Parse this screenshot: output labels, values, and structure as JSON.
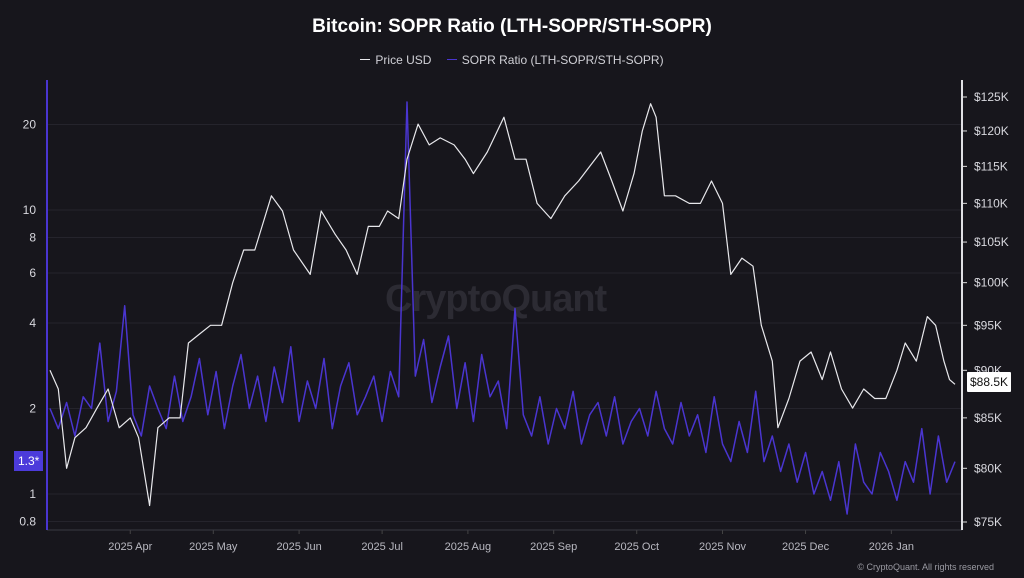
{
  "chart_data": {
    "type": "line",
    "title": "Bitcoin: SOPR Ratio (LTH-SOPR/STH-SOPR)",
    "legend": [
      {
        "name": "Price USD",
        "color": "#e8e8ec"
      },
      {
        "name": "SOPR Ratio (LTH-SOPR/STH-SOPR)",
        "color": "#4a35d0"
      }
    ],
    "legend_position": "top-center",
    "x_range": [
      "2025-03-03",
      "2026-01-24"
    ],
    "x_ticks": [
      "2025 Apr",
      "2025 May",
      "2025 Jun",
      "2025 Jul",
      "2025 Aug",
      "2025 Sep",
      "2025 Oct",
      "2025 Nov",
      "2025 Dec",
      "2026 Jan"
    ],
    "x_tick_dates": [
      "2025-04-01",
      "2025-05-01",
      "2025-06-01",
      "2025-07-01",
      "2025-08-01",
      "2025-09-01",
      "2025-10-01",
      "2025-11-01",
      "2025-12-01",
      "2026-01-01"
    ],
    "left_axis": {
      "scale": "log",
      "range": [
        0.75,
        28
      ],
      "ticks": [
        20,
        10,
        8,
        6,
        4,
        2,
        1,
        0.8
      ],
      "tick_labels": [
        "20",
        "10",
        "8",
        "6",
        "4",
        "2",
        "1",
        "0.8"
      ]
    },
    "right_axis": {
      "scale": "log",
      "range": [
        75,
        128
      ],
      "ticks": [
        125,
        120,
        115,
        110,
        105,
        100,
        95,
        90,
        85,
        80,
        75
      ],
      "tick_labels": [
        "$125K",
        "$120K",
        "$115K",
        "$110K",
        "$105K",
        "$100K",
        "$95K",
        "$90K",
        "$85K",
        "$80K",
        "$75K"
      ]
    },
    "price_series": {
      "name": "Price USD",
      "unit": "thousand USD",
      "dates": [
        "2025-03-03",
        "2025-03-06",
        "2025-03-09",
        "2025-03-12",
        "2025-03-16",
        "2025-03-20",
        "2025-03-24",
        "2025-03-28",
        "2025-04-01",
        "2025-04-04",
        "2025-04-08",
        "2025-04-11",
        "2025-04-15",
        "2025-04-19",
        "2025-04-22",
        "2025-04-26",
        "2025-04-30",
        "2025-05-04",
        "2025-05-08",
        "2025-05-12",
        "2025-05-16",
        "2025-05-22",
        "2025-05-26",
        "2025-05-30",
        "2025-06-05",
        "2025-06-09",
        "2025-06-14",
        "2025-06-18",
        "2025-06-22",
        "2025-06-26",
        "2025-06-30",
        "2025-07-03",
        "2025-07-07",
        "2025-07-10",
        "2025-07-14",
        "2025-07-18",
        "2025-07-22",
        "2025-07-27",
        "2025-07-31",
        "2025-08-03",
        "2025-08-08",
        "2025-08-14",
        "2025-08-18",
        "2025-08-22",
        "2025-08-26",
        "2025-08-31",
        "2025-09-05",
        "2025-09-10",
        "2025-09-14",
        "2025-09-18",
        "2025-09-22",
        "2025-09-26",
        "2025-09-30",
        "2025-10-03",
        "2025-10-06",
        "2025-10-08",
        "2025-10-11",
        "2025-10-15",
        "2025-10-20",
        "2025-10-24",
        "2025-10-28",
        "2025-11-01",
        "2025-11-04",
        "2025-11-08",
        "2025-11-12",
        "2025-11-15",
        "2025-11-19",
        "2025-11-21",
        "2025-11-25",
        "2025-11-29",
        "2025-12-03",
        "2025-12-07",
        "2025-12-10",
        "2025-12-14",
        "2025-12-18",
        "2025-12-22",
        "2025-12-26",
        "2025-12-30",
        "2026-01-03",
        "2026-01-06",
        "2026-01-10",
        "2026-01-14",
        "2026-01-17",
        "2026-01-20",
        "2026-01-22",
        "2026-01-24"
      ],
      "values": [
        90,
        88,
        80,
        83,
        84,
        86,
        88,
        84,
        85,
        83,
        76.5,
        84,
        85,
        85,
        93,
        94,
        95,
        95,
        100,
        104,
        104,
        111,
        109,
        104,
        101,
        109,
        106,
        104,
        101,
        107,
        107,
        109,
        108,
        116,
        121,
        118,
        119,
        118,
        116,
        114,
        117,
        122,
        116,
        116,
        110,
        108,
        111,
        113,
        115,
        117,
        113,
        109,
        114,
        120,
        124,
        122,
        111,
        111,
        110,
        110,
        113,
        110,
        101,
        103,
        102,
        95,
        91,
        84,
        87,
        91,
        92,
        89,
        92,
        88,
        86,
        88,
        87,
        87,
        90,
        93,
        91,
        96,
        95,
        91,
        89,
        88.5
      ]
    },
    "ratio_series": {
      "name": "SOPR Ratio (LTH-SOPR/STH-SOPR)",
      "start_date": "2025-03-03",
      "step_days": 3,
      "values": [
        2.0,
        1.7,
        2.1,
        1.6,
        2.2,
        2.0,
        3.4,
        1.8,
        2.3,
        4.6,
        1.9,
        1.6,
        2.4,
        2.0,
        1.7,
        2.6,
        1.8,
        2.2,
        3.0,
        1.9,
        2.7,
        1.7,
        2.4,
        3.1,
        2.0,
        2.6,
        1.8,
        2.8,
        2.1,
        3.3,
        1.8,
        2.5,
        2.0,
        3.0,
        1.7,
        2.4,
        2.9,
        1.9,
        2.2,
        2.6,
        1.8,
        2.7,
        2.2,
        24,
        2.6,
        3.5,
        2.1,
        2.8,
        3.6,
        2.0,
        2.9,
        1.8,
        3.1,
        2.2,
        2.5,
        1.7,
        4.5,
        1.9,
        1.6,
        2.2,
        1.5,
        2.0,
        1.7,
        2.3,
        1.5,
        1.9,
        2.1,
        1.6,
        2.2,
        1.5,
        1.8,
        2.0,
        1.6,
        2.3,
        1.7,
        1.5,
        2.1,
        1.6,
        1.9,
        1.4,
        2.2,
        1.5,
        1.3,
        1.8,
        1.4,
        2.3,
        1.3,
        1.6,
        1.2,
        1.5,
        1.1,
        1.4,
        1.0,
        1.2,
        0.95,
        1.3,
        0.85,
        1.5,
        1.1,
        1.0,
        1.4,
        1.2,
        0.95,
        1.3,
        1.1,
        1.7,
        1.0,
        1.6,
        1.1,
        1.3
      ]
    },
    "current_price_label": "$88.5K",
    "current_ratio_label": "1.3*",
    "grid": true
  },
  "watermark": "CryptoQuant",
  "footer": "© CryptoQuant. All rights reserved"
}
